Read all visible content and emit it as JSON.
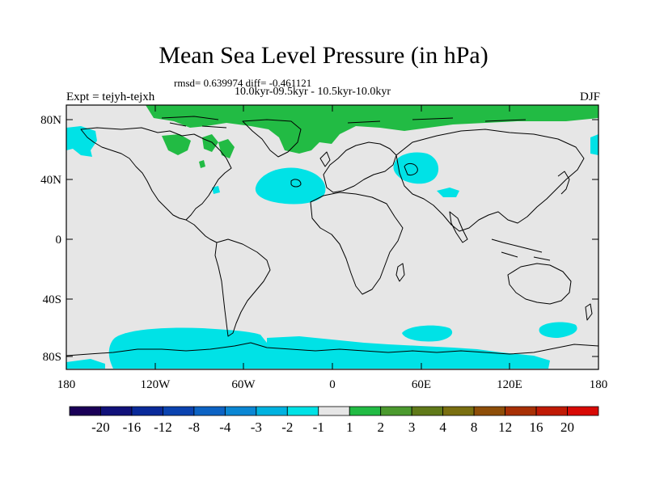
{
  "title": "Mean Sea Level Pressure (in hPa)",
  "stats": "rmsd= 0.639974 diff= -0.461121",
  "period": "10.0kyr-09.5kyr - 10.5kyr-10.0kyr",
  "expt": "Expt = tejyh-tejxh",
  "season": "DJF",
  "lat_labels": [
    "80N",
    "40N",
    "0",
    "40S",
    "80S"
  ],
  "lon_labels": [
    "180",
    "120W",
    "60W",
    "0",
    "60E",
    "120E",
    "180"
  ],
  "colorbar": {
    "labels": [
      "-20",
      "-16",
      "-12",
      "-8",
      "-4",
      "-3",
      "-2",
      "-1",
      "1",
      "2",
      "3",
      "4",
      "8",
      "12",
      "16",
      "20"
    ],
    "colors": [
      "#1a0057",
      "#11117a",
      "#0a2a9a",
      "#0b43b0",
      "#0d63c4",
      "#0b87d4",
      "#00b2e0",
      "#00e2e6",
      "#e6e6e6",
      "#22bb44",
      "#4b9a2e",
      "#607a19",
      "#7a6f10",
      "#8e4e08",
      "#a83005",
      "#c01a05",
      "#d80a05"
    ]
  },
  "map_colors": {
    "background": "#e6e6e6",
    "negative": "#00e2e6",
    "positive": "#22bb44"
  }
}
